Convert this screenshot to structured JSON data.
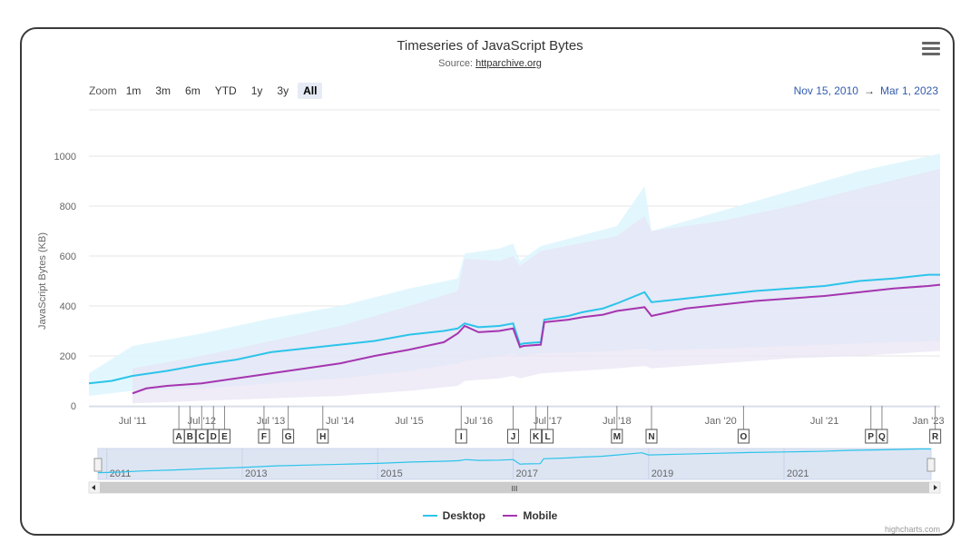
{
  "header": {
    "title": "Timeseries of JavaScript Bytes",
    "source_prefix": "Source: ",
    "source_link": "httparchive.org"
  },
  "zoom": {
    "label": "Zoom",
    "buttons": [
      "1m",
      "3m",
      "6m",
      "YTD",
      "1y",
      "3y",
      "All"
    ],
    "active": "All"
  },
  "range": {
    "from": "Nov 15, 2010",
    "arrow": "→",
    "to": "Mar 1, 2023"
  },
  "navigator": {
    "years": [
      "2011",
      "2013",
      "2015",
      "2017",
      "2019",
      "2021"
    ],
    "grip": "III"
  },
  "credits": "highcharts.com",
  "colors": {
    "desktop": "#2cc4ea",
    "mobile": "#a535b0",
    "desktop_band": "#dff6fd",
    "mobile_band": "#e8e2f3",
    "accent": "#335cad"
  },
  "chart_data": {
    "type": "line",
    "title": "Timeseries of JavaScript Bytes",
    "ylabel": "JavaScript Bytes (KB)",
    "xlabel": "",
    "ylim": [
      0,
      1000
    ],
    "yticks": [
      0,
      200,
      400,
      600,
      800,
      1000
    ],
    "xlim": [
      2010.87,
      2023.17
    ],
    "xticks": [
      {
        "x": 2011.5,
        "label": "Jul '11"
      },
      {
        "x": 2012.5,
        "label": "Jul '12"
      },
      {
        "x": 2013.5,
        "label": "Jul '13"
      },
      {
        "x": 2014.5,
        "label": "Jul '14"
      },
      {
        "x": 2015.5,
        "label": "Jul '15"
      },
      {
        "x": 2016.5,
        "label": "Jul '16"
      },
      {
        "x": 2017.5,
        "label": "Jul '17"
      },
      {
        "x": 2018.5,
        "label": "Jul '18"
      },
      {
        "x": 2020.0,
        "label": "Jan '20"
      },
      {
        "x": 2021.5,
        "label": "Jul '21"
      },
      {
        "x": 2023.0,
        "label": "Jan '23"
      }
    ],
    "series": [
      {
        "name": "Desktop",
        "x": [
          2010.87,
          2011.2,
          2011.5,
          2012.0,
          2012.5,
          2013.0,
          2013.5,
          2014.0,
          2014.5,
          2015.0,
          2015.5,
          2016.0,
          2016.2,
          2016.3,
          2016.5,
          2016.8,
          2017.0,
          2017.1,
          2017.15,
          2017.4,
          2017.45,
          2017.8,
          2018.0,
          2018.3,
          2018.5,
          2018.9,
          2019.0,
          2019.5,
          2020.0,
          2020.5,
          2021.0,
          2021.5,
          2022.0,
          2022.5,
          2023.0,
          2023.17
        ],
        "values": [
          90,
          100,
          120,
          140,
          165,
          185,
          215,
          230,
          245,
          260,
          285,
          300,
          310,
          330,
          315,
          320,
          330,
          245,
          250,
          255,
          345,
          360,
          375,
          390,
          410,
          455,
          415,
          430,
          445,
          460,
          470,
          480,
          500,
          510,
          525,
          525
        ]
      },
      {
        "name": "Mobile",
        "x": [
          2011.5,
          2011.7,
          2012.0,
          2012.5,
          2013.0,
          2013.5,
          2014.0,
          2014.5,
          2015.0,
          2015.5,
          2016.0,
          2016.2,
          2016.3,
          2016.5,
          2016.8,
          2017.0,
          2017.1,
          2017.15,
          2017.4,
          2017.45,
          2017.8,
          2018.0,
          2018.3,
          2018.5,
          2018.9,
          2019.0,
          2019.5,
          2020.0,
          2020.5,
          2021.0,
          2021.5,
          2022.0,
          2022.5,
          2023.0,
          2023.17
        ],
        "values": [
          50,
          70,
          80,
          90,
          110,
          130,
          150,
          170,
          200,
          225,
          255,
          290,
          320,
          295,
          300,
          310,
          235,
          240,
          245,
          335,
          345,
          355,
          365,
          380,
          395,
          360,
          390,
          405,
          420,
          430,
          440,
          455,
          470,
          480,
          485
        ]
      }
    ],
    "bands": [
      {
        "name": "Desktop range",
        "x": [
          2010.87,
          2011.5,
          2012.5,
          2013.5,
          2014.5,
          2015.5,
          2016.2,
          2016.3,
          2016.8,
          2017.0,
          2017.1,
          2017.4,
          2018.5,
          2018.9,
          2019.0,
          2020.0,
          2021.0,
          2022.0,
          2023.17
        ],
        "upper": [
          130,
          240,
          290,
          350,
          400,
          470,
          510,
          610,
          630,
          650,
          580,
          640,
          720,
          880,
          700,
          780,
          860,
          940,
          1010
        ],
        "lower": [
          40,
          60,
          70,
          90,
          110,
          140,
          170,
          180,
          200,
          210,
          200,
          210,
          220,
          230,
          220,
          230,
          240,
          250,
          260
        ]
      },
      {
        "name": "Mobile range",
        "x": [
          2011.5,
          2012.5,
          2013.5,
          2014.5,
          2015.5,
          2016.2,
          2016.3,
          2016.8,
          2017.0,
          2017.1,
          2017.4,
          2018.5,
          2018.9,
          2019.0,
          2020.0,
          2021.0,
          2022.0,
          2023.17
        ],
        "upper": [
          150,
          200,
          260,
          320,
          400,
          460,
          590,
          580,
          600,
          560,
          620,
          680,
          760,
          700,
          740,
          800,
          870,
          950
        ],
        "lower": [
          10,
          20,
          30,
          40,
          60,
          80,
          100,
          110,
          120,
          110,
          130,
          150,
          160,
          150,
          170,
          190,
          200,
          220
        ]
      }
    ],
    "flags": [
      {
        "x": 2012.17,
        "label": "A"
      },
      {
        "x": 2012.33,
        "label": "B"
      },
      {
        "x": 2012.5,
        "label": "C"
      },
      {
        "x": 2012.67,
        "label": "D"
      },
      {
        "x": 2012.83,
        "label": "E"
      },
      {
        "x": 2013.4,
        "label": "F"
      },
      {
        "x": 2013.75,
        "label": "G"
      },
      {
        "x": 2014.25,
        "label": "H"
      },
      {
        "x": 2016.25,
        "label": "I"
      },
      {
        "x": 2017.0,
        "label": "J"
      },
      {
        "x": 2017.33,
        "label": "K"
      },
      {
        "x": 2017.5,
        "label": "L"
      },
      {
        "x": 2018.5,
        "label": "M"
      },
      {
        "x": 2019.0,
        "label": "N"
      },
      {
        "x": 2020.33,
        "label": "O"
      },
      {
        "x": 2022.17,
        "label": "P"
      },
      {
        "x": 2022.33,
        "label": "Q"
      },
      {
        "x": 2023.1,
        "label": "R"
      }
    ]
  },
  "legend": {
    "items": [
      "Desktop",
      "Mobile"
    ]
  }
}
